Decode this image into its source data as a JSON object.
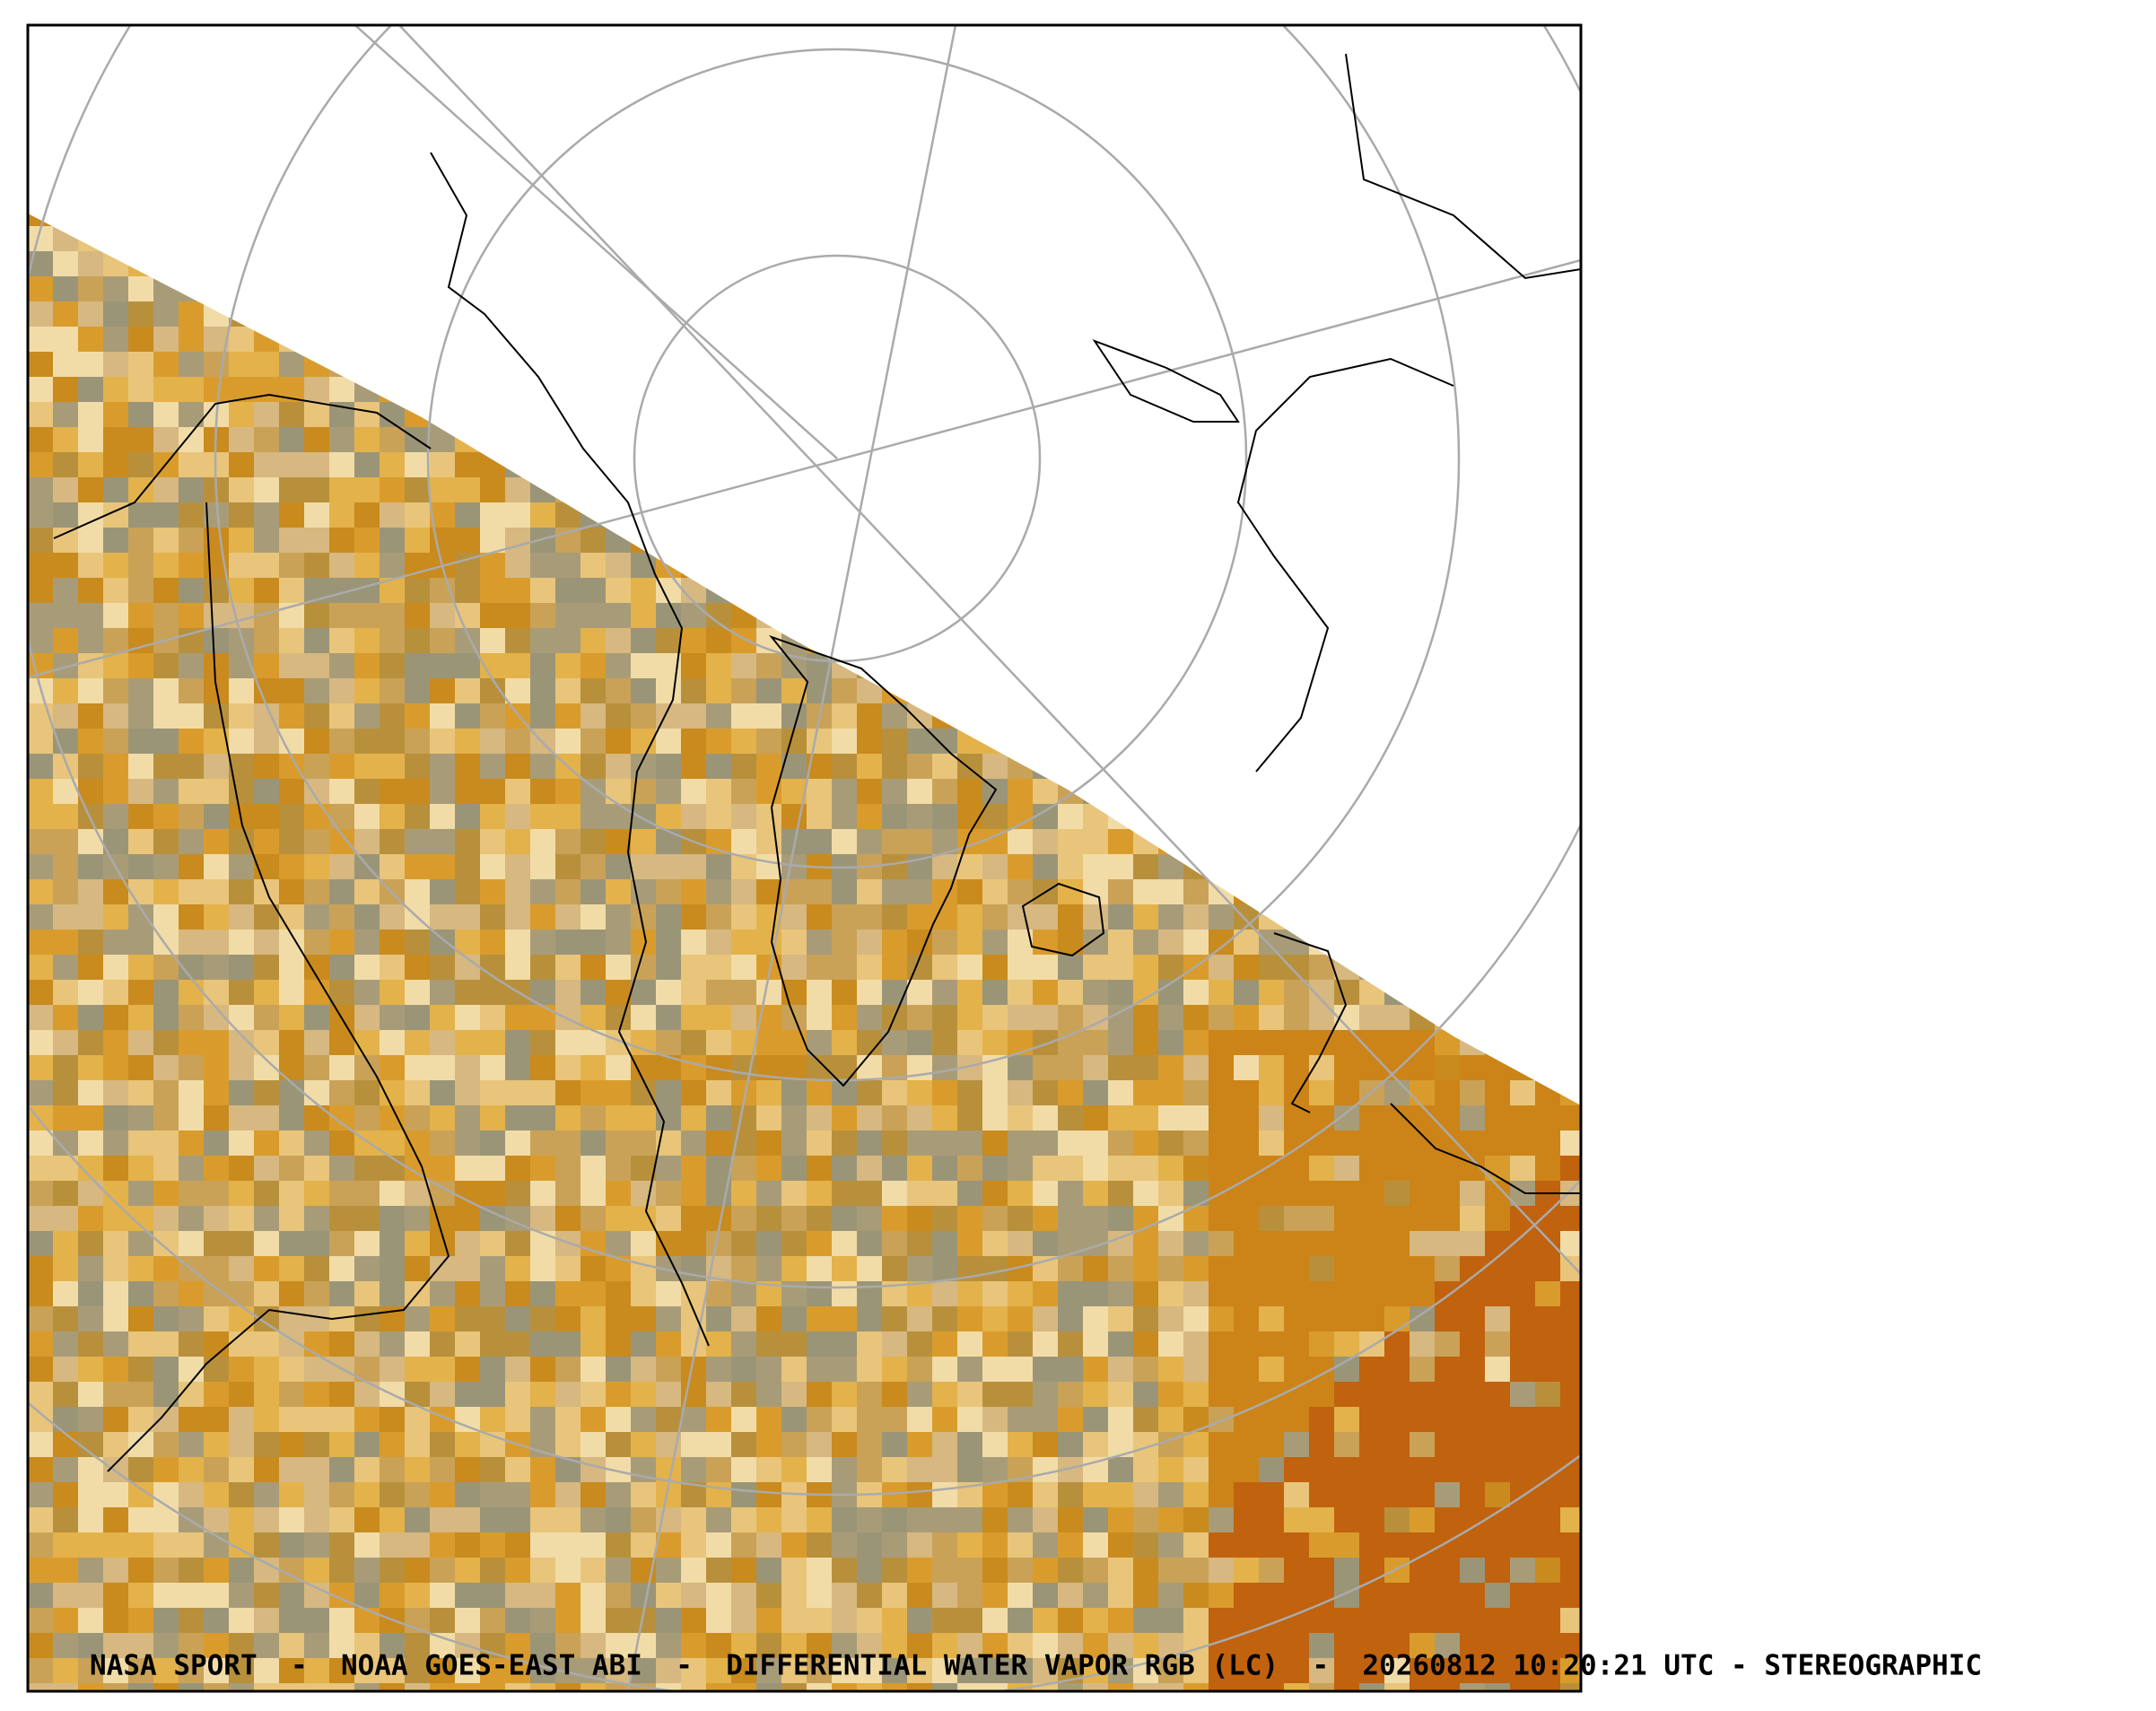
{
  "caption": "NASA SPORT  -  NOAA GOES-EAST ABI  -  DIFFERENTIAL WATER VAPOR RGB (LC)  -  20260812 10:20:21 UTC - STEREOGRAPHIC"
}
